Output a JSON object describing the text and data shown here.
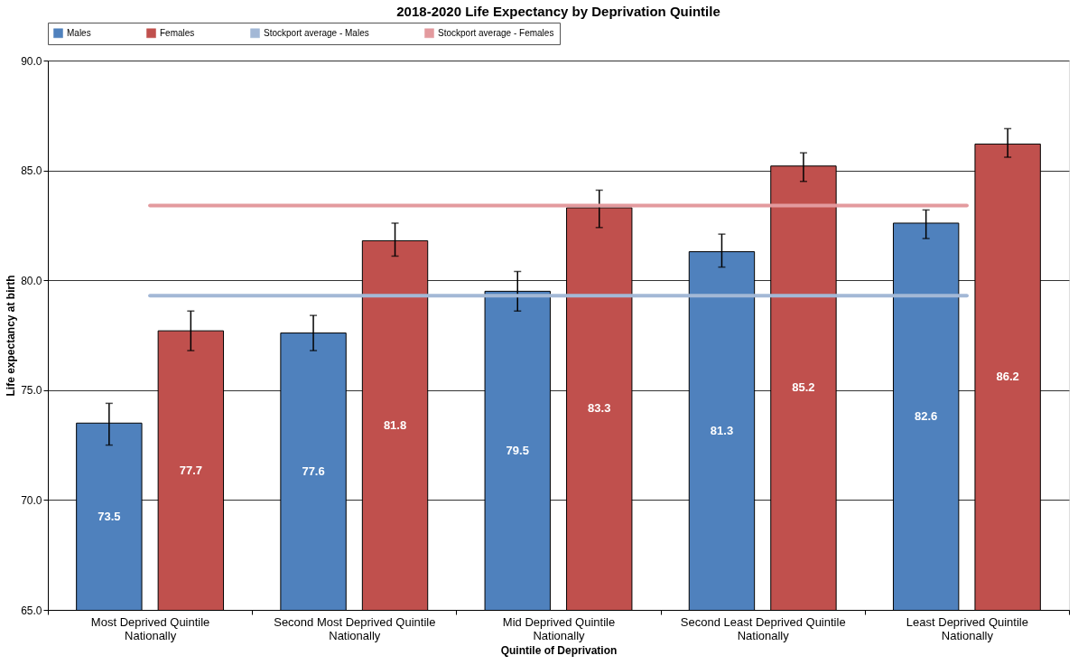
{
  "chart_data": {
    "type": "bar",
    "title": "2018-2020 Life Expectancy by Deprivation Quintile",
    "xlabel": "Quintile of Deprivation",
    "ylabel": "Life expectancy at birth",
    "categories": [
      "Most Deprived Quintile Nationally",
      "Second Most Deprived Quintile Nationally",
      "Mid Deprived Quintile Nationally",
      "Second Least Deprived Quintile Nationally",
      "Least Deprived Quintile Nationally"
    ],
    "series": [
      {
        "name": "Males",
        "color": "#4f81bd",
        "values": [
          73.5,
          77.6,
          79.5,
          81.3,
          82.6
        ],
        "value_labels": [
          "73.5",
          "77.6",
          "79.5",
          "81.3",
          "82.6"
        ],
        "errors": [
          [
            72.5,
            74.4
          ],
          [
            76.8,
            78.4
          ],
          [
            78.6,
            80.4
          ],
          [
            80.6,
            82.1
          ],
          [
            81.9,
            83.2
          ]
        ]
      },
      {
        "name": "Females",
        "color": "#c0504d",
        "values": [
          77.7,
          81.8,
          83.3,
          85.2,
          86.2
        ],
        "value_labels": [
          "77.7",
          "81.8",
          "83.3",
          "85.2",
          "86.2"
        ],
        "errors": [
          [
            76.8,
            78.6
          ],
          [
            81.1,
            82.6
          ],
          [
            82.4,
            84.1
          ],
          [
            84.5,
            85.8
          ],
          [
            85.6,
            86.9
          ]
        ]
      },
      {
        "name": "Stockport average - Males",
        "type": "line",
        "color": "#a3b8d6",
        "values": [
          79.3,
          79.3,
          79.3,
          79.3,
          79.3
        ]
      },
      {
        "name": "Stockport average - Females",
        "type": "line",
        "color": "#e39a9e",
        "values": [
          83.4,
          83.4,
          83.4,
          83.4,
          83.4
        ]
      }
    ],
    "ylim": [
      65,
      90
    ],
    "yticks": [
      {
        "value": 65,
        "label": "65.0"
      },
      {
        "value": 70,
        "label": "70.0"
      },
      {
        "value": 75,
        "label": "75.0"
      },
      {
        "value": 80,
        "label": "80.0"
      },
      {
        "value": 85,
        "label": "85.0"
      },
      {
        "value": 90,
        "label": "90.0"
      }
    ],
    "grid": "y",
    "legend": "top"
  }
}
